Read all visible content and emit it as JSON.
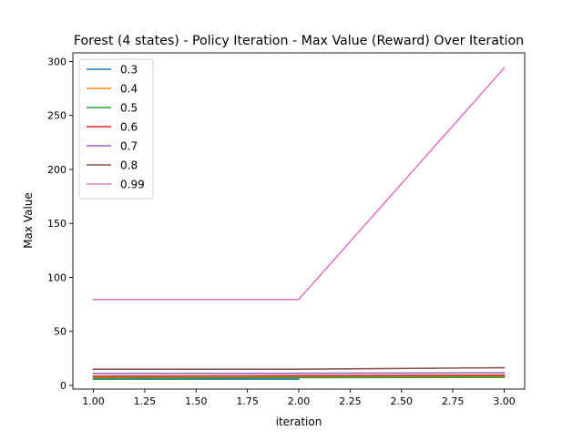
{
  "chart_data": {
    "type": "line",
    "title": "Forest (4 states) - Policy Iteration - Max Value (Reward) Over Iteration",
    "xlabel": "iteration",
    "ylabel": "Max Value",
    "xlim": [
      0.9,
      3.1
    ],
    "ylim": [
      -3.4,
      308
    ],
    "xticks": [
      1.0,
      1.25,
      1.5,
      1.75,
      2.0,
      2.25,
      2.5,
      2.75,
      3.0
    ],
    "xtick_labels": [
      "1.00",
      "1.25",
      "1.50",
      "1.75",
      "2.00",
      "2.25",
      "2.50",
      "2.75",
      "3.00"
    ],
    "yticks": [
      0,
      50,
      100,
      150,
      200,
      250,
      300
    ],
    "ytick_labels": [
      "0",
      "50",
      "100",
      "150",
      "200",
      "250",
      "300"
    ],
    "grid": false,
    "legend_position": "top-left",
    "series": [
      {
        "name": "0.3",
        "color": "#1f77b4",
        "x": [
          1,
          2
        ],
        "y": [
          5.8,
          5.8
        ]
      },
      {
        "name": "0.4",
        "color": "#ff7f0e",
        "x": [
          1,
          2,
          3
        ],
        "y": [
          7.2,
          7.8,
          8.2
        ]
      },
      {
        "name": "0.5",
        "color": "#2ca02c",
        "x": [
          1,
          2,
          3
        ],
        "y": [
          6.5,
          7.2,
          7.5
        ]
      },
      {
        "name": "0.6",
        "color": "#d62728",
        "x": [
          1,
          2,
          3
        ],
        "y": [
          8.5,
          9.0,
          9.4
        ]
      },
      {
        "name": "0.7",
        "color": "#9467bd",
        "x": [
          1,
          2,
          3
        ],
        "y": [
          11.0,
          11.2,
          11.6
        ]
      },
      {
        "name": "0.8",
        "color": "#8c564b",
        "x": [
          1,
          2,
          3
        ],
        "y": [
          15.0,
          15.0,
          16.4
        ]
      },
      {
        "name": "0.99",
        "color": "#e377c2",
        "x": [
          1,
          2,
          3
        ],
        "y": [
          79.6,
          79.6,
          294.0
        ]
      }
    ]
  }
}
